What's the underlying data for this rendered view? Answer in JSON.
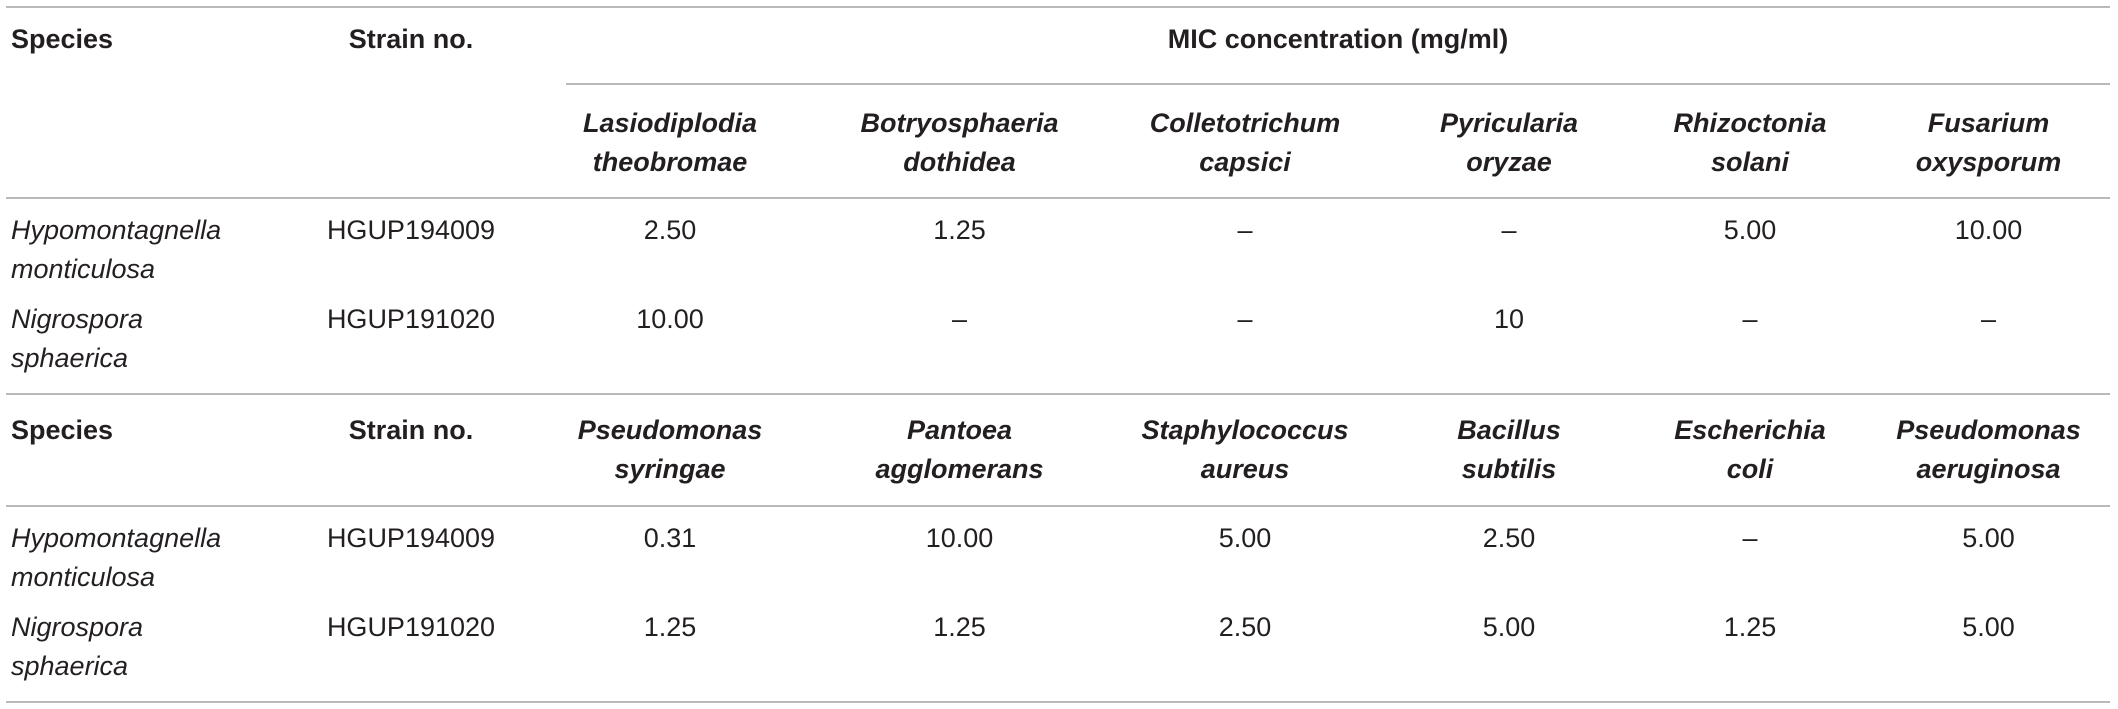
{
  "colors": {
    "text": "#231f20",
    "rule": "#b9b9b9",
    "background": "#ffffff"
  },
  "mic_header": "MIC concentration (mg/ml)",
  "sections": [
    {
      "species_header": "Species",
      "strain_header": "Strain no.",
      "targets": [
        [
          "Lasiodiplodia",
          "theobromae"
        ],
        [
          "Botryosphaeria",
          "dothidea"
        ],
        [
          "Colletotrichum",
          "capsici"
        ],
        [
          "Pyricularia",
          "oryzae"
        ],
        [
          "Rhizoctonia",
          "solani"
        ],
        [
          "Fusarium",
          "oxysporum"
        ]
      ],
      "rows": [
        {
          "species": [
            "Hypomontagnella",
            "monticulosa"
          ],
          "strain": "HGUP194009",
          "values": [
            "2.50",
            "1.25",
            "–",
            "–",
            "5.00",
            "10.00"
          ]
        },
        {
          "species": [
            "Nigrospora",
            "sphaerica"
          ],
          "strain": "HGUP191020",
          "values": [
            "10.00",
            "–",
            "–",
            "10",
            "–",
            "–"
          ]
        }
      ]
    },
    {
      "species_header": "Species",
      "strain_header": "Strain no.",
      "targets": [
        [
          "Pseudomonas",
          "syringae"
        ],
        [
          "Pantoea",
          "agglomerans"
        ],
        [
          "Staphylococcus",
          "aureus"
        ],
        [
          "Bacillus",
          "subtilis"
        ],
        [
          "Escherichia",
          "coli"
        ],
        [
          "Pseudomonas",
          "aeruginosa"
        ]
      ],
      "rows": [
        {
          "species": [
            "Hypomontagnella",
            "monticulosa"
          ],
          "strain": "HGUP194009",
          "values": [
            "0.31",
            "10.00",
            "5.00",
            "2.50",
            "–",
            "5.00"
          ]
        },
        {
          "species": [
            "Nigrospora",
            "sphaerica"
          ],
          "strain": "HGUP191020",
          "values": [
            "1.25",
            "1.25",
            "2.50",
            "5.00",
            "1.25",
            "5.00"
          ]
        }
      ]
    }
  ]
}
